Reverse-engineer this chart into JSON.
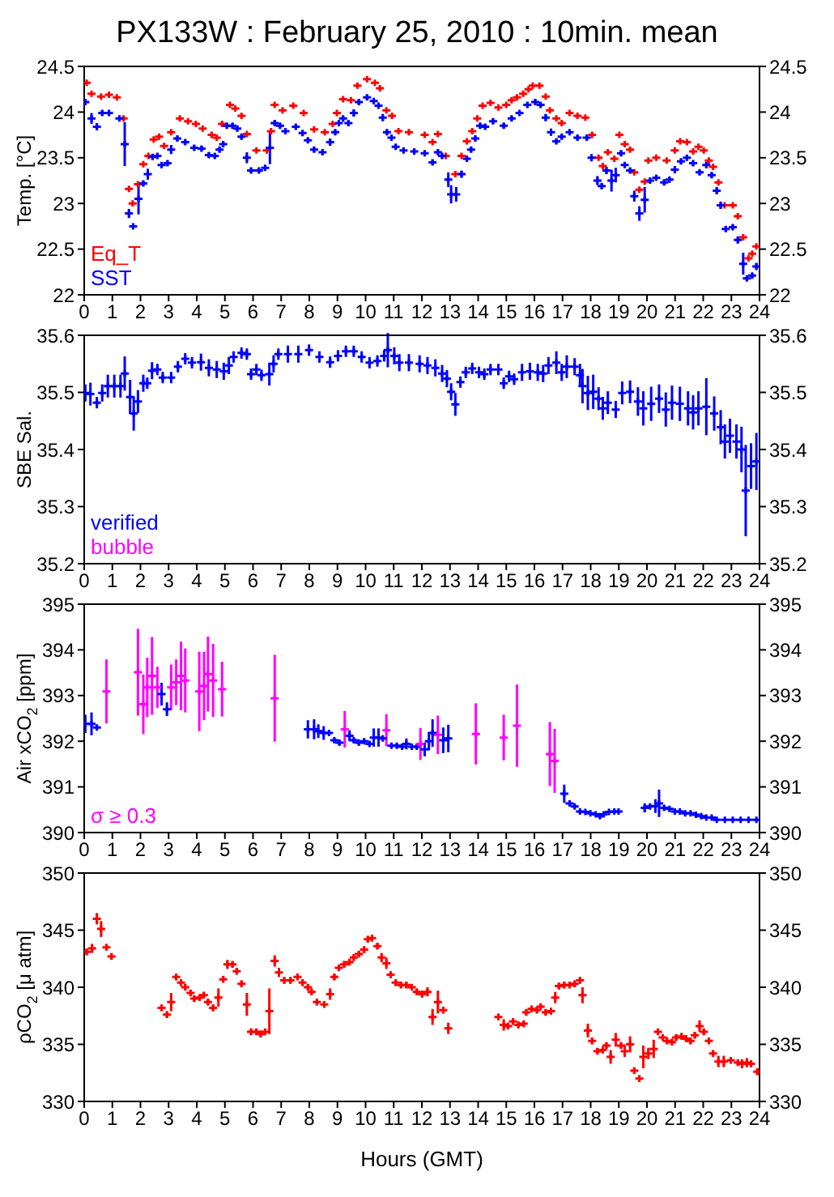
{
  "chart_data": [
    {
      "type": "scatter",
      "title": "PX133W : February 25, 2010 : 10min. mean",
      "ylabel": "Temp. [°C]",
      "marker": "cross",
      "legend": "bottom left",
      "xlim": [
        0,
        24
      ],
      "xticks": [
        0,
        1,
        2,
        3,
        4,
        5,
        6,
        7,
        8,
        9,
        10,
        11,
        12,
        13,
        14,
        15,
        16,
        17,
        18,
        19,
        20,
        21,
        22,
        23,
        24
      ],
      "ylim": [
        22,
        24.5
      ],
      "yticks": [
        22,
        22.5,
        23,
        23.5,
        24,
        24.5
      ],
      "y2lim": [
        22,
        24.5
      ],
      "y2ticks": [
        22,
        22.5,
        23,
        23.5,
        24,
        24.5
      ],
      "series": [
        {
          "name": "Eq_T",
          "color": "#ff0000",
          "x": [
            0.09,
            0.26,
            0.6,
            0.88,
            1.16,
            1.4,
            1.59,
            1.72,
            1.91,
            2.1,
            2.28,
            2.47,
            2.66,
            2.84,
            3.09,
            3.4,
            3.69,
            3.97,
            4.21,
            4.53,
            4.71,
            4.9,
            5.18,
            5.37,
            5.59,
            5.78,
            6.12,
            6.49,
            6.64,
            6.77,
            7.05,
            7.43,
            7.8,
            8.17,
            8.55,
            8.83,
            8.98,
            9.2,
            9.48,
            9.71,
            10.05,
            10.33,
            10.51,
            10.74,
            10.94,
            11.17,
            11.54,
            12.1,
            12.38,
            12.57,
            12.85,
            13.19,
            13.41,
            13.6,
            13.79,
            13.97,
            14.16,
            14.44,
            14.72,
            15.0,
            15.19,
            15.38,
            15.6,
            15.79,
            15.94,
            16.18,
            16.4,
            16.55,
            16.78,
            16.97,
            17.25,
            17.53,
            17.81,
            18.05,
            18.28,
            18.43,
            18.61,
            18.84,
            19.02,
            19.21,
            19.4,
            19.55,
            19.73,
            19.92,
            20.05,
            20.33,
            20.7,
            20.99,
            21.18,
            21.42,
            21.64,
            21.83,
            22.02,
            22.2,
            22.35,
            22.54,
            22.76,
            23.05,
            23.23,
            23.42,
            23.61,
            23.74,
            23.89
          ],
          "values": [
            24.32,
            24.2,
            24.17,
            24.19,
            24.16,
            23.93,
            23.16,
            23.0,
            23.21,
            23.43,
            23.52,
            23.7,
            23.73,
            23.63,
            23.78,
            23.93,
            23.9,
            23.87,
            23.82,
            23.75,
            23.72,
            23.87,
            24.08,
            24.04,
            23.96,
            23.76,
            23.58,
            23.58,
            23.79,
            24.08,
            24.02,
            24.07,
            23.99,
            23.81,
            23.78,
            23.87,
            23.99,
            24.14,
            24.13,
            24.29,
            24.36,
            24.32,
            24.26,
            24.02,
            23.96,
            23.79,
            23.78,
            23.75,
            23.67,
            23.76,
            23.52,
            23.32,
            23.52,
            23.68,
            23.79,
            23.93,
            24.07,
            24.1,
            24.05,
            24.08,
            24.13,
            24.16,
            24.2,
            24.25,
            24.29,
            24.29,
            24.17,
            24.02,
            23.93,
            23.88,
            23.99,
            23.96,
            23.94,
            23.75,
            23.5,
            23.41,
            23.56,
            23.49,
            23.75,
            23.65,
            23.59,
            23.34,
            23.15,
            23.24,
            23.47,
            23.5,
            23.47,
            23.58,
            23.68,
            23.67,
            23.57,
            23.62,
            23.58,
            23.47,
            23.4,
            23.23,
            22.98,
            22.98,
            22.86,
            22.63,
            22.4,
            22.45,
            22.53
          ]
        },
        {
          "name": "SST",
          "color": "#0000ff",
          "x": [
            0.04,
            0.26,
            0.45,
            0.64,
            0.88,
            1.25,
            1.44,
            1.59,
            1.74,
            1.93,
            2.1,
            2.26,
            2.43,
            2.6,
            2.75,
            2.96,
            3.09,
            3.31,
            3.59,
            3.91,
            4.17,
            4.43,
            4.64,
            4.81,
            4.94,
            5.07,
            5.27,
            5.44,
            5.59,
            5.78,
            5.93,
            6.21,
            6.43,
            6.6,
            6.77,
            6.96,
            7.15,
            7.52,
            7.76,
            7.95,
            8.17,
            8.47,
            8.74,
            8.92,
            9.05,
            9.2,
            9.39,
            9.58,
            9.76,
            10.05,
            10.29,
            10.46,
            10.61,
            10.76,
            10.92,
            11.07,
            11.35,
            11.73,
            12.1,
            12.38,
            12.57,
            12.72,
            12.94,
            13.04,
            13.22,
            13.41,
            13.6,
            13.75,
            13.9,
            14.07,
            14.25,
            14.53,
            14.91,
            15.19,
            15.47,
            15.75,
            16.03,
            16.22,
            16.4,
            16.59,
            16.78,
            16.97,
            17.25,
            17.53,
            17.86,
            18.03,
            18.24,
            18.39,
            18.56,
            18.74,
            18.89,
            19.08,
            19.21,
            19.4,
            19.55,
            19.73,
            19.92,
            20.11,
            20.33,
            20.61,
            20.8,
            20.99,
            21.21,
            21.42,
            21.64,
            21.87,
            22.11,
            22.3,
            22.48,
            22.62,
            22.8,
            23.05,
            23.23,
            23.42,
            23.55,
            23.74,
            23.89
          ],
          "values": [
            24.11,
            23.93,
            23.84,
            23.99,
            23.99,
            23.93,
            23.65,
            22.89,
            22.75,
            23.05,
            23.22,
            23.32,
            23.51,
            23.52,
            23.42,
            23.44,
            23.59,
            23.71,
            23.67,
            23.61,
            23.6,
            23.53,
            23.52,
            23.59,
            23.65,
            23.85,
            23.85,
            23.82,
            23.73,
            23.5,
            23.36,
            23.36,
            23.39,
            23.61,
            23.88,
            23.85,
            23.79,
            23.84,
            23.77,
            23.69,
            23.59,
            23.56,
            23.67,
            23.78,
            23.88,
            23.93,
            23.88,
            23.99,
            24.11,
            24.16,
            24.12,
            24.07,
            23.94,
            23.78,
            23.72,
            23.62,
            23.58,
            23.57,
            23.55,
            23.45,
            23.56,
            23.52,
            23.26,
            23.1,
            23.1,
            23.32,
            23.49,
            23.59,
            23.71,
            23.85,
            23.84,
            23.9,
            23.85,
            23.93,
            23.99,
            24.08,
            24.11,
            24.08,
            23.94,
            23.78,
            23.68,
            23.73,
            23.78,
            23.72,
            23.72,
            23.5,
            23.25,
            23.19,
            23.36,
            23.25,
            23.31,
            23.55,
            23.42,
            23.36,
            23.08,
            22.89,
            23.04,
            23.25,
            23.28,
            23.23,
            23.26,
            23.37,
            23.46,
            23.5,
            23.44,
            23.34,
            23.42,
            23.31,
            23.14,
            22.98,
            22.72,
            22.74,
            22.6,
            22.34,
            22.18,
            22.21,
            22.31
          ],
          "errors": [
            0.03,
            0.06,
            0.04,
            0.03,
            0.03,
            0.03,
            0.24,
            0.05,
            0.03,
            0.17,
            0.03,
            0.06,
            0.03,
            0.03,
            0.03,
            0.03,
            0.05,
            0.03,
            0.03,
            0.03,
            0.03,
            0.03,
            0.03,
            0.03,
            0.03,
            0.03,
            0.03,
            0.03,
            0.03,
            0.06,
            0.03,
            0.03,
            0.03,
            0.18,
            0.03,
            0.03,
            0.03,
            0.03,
            0.03,
            0.03,
            0.03,
            0.03,
            0.04,
            0.03,
            0.03,
            0.03,
            0.03,
            0.04,
            0.03,
            0.03,
            0.03,
            0.03,
            0.04,
            0.03,
            0.03,
            0.03,
            0.03,
            0.03,
            0.03,
            0.03,
            0.03,
            0.03,
            0.08,
            0.1,
            0.08,
            0.04,
            0.03,
            0.03,
            0.03,
            0.03,
            0.03,
            0.03,
            0.03,
            0.03,
            0.03,
            0.03,
            0.03,
            0.03,
            0.04,
            0.04,
            0.03,
            0.03,
            0.03,
            0.03,
            0.03,
            0.04,
            0.05,
            0.03,
            0.04,
            0.12,
            0.08,
            0.03,
            0.03,
            0.03,
            0.06,
            0.08,
            0.14,
            0.03,
            0.03,
            0.03,
            0.03,
            0.04,
            0.03,
            0.03,
            0.03,
            0.03,
            0.03,
            0.03,
            0.04,
            0.04,
            0.03,
            0.03,
            0.04,
            0.12,
            0.03,
            0.03,
            0.04
          ]
        }
      ]
    },
    {
      "type": "scatter",
      "ylabel": "SBE Sal.",
      "marker": "cross",
      "legend": "bottom left",
      "xlim": [
        0,
        24
      ],
      "xticks": [
        0,
        1,
        2,
        3,
        4,
        5,
        6,
        7,
        8,
        9,
        10,
        11,
        12,
        13,
        14,
        15,
        16,
        17,
        18,
        19,
        20,
        21,
        22,
        23,
        24
      ],
      "ylim": [
        35.2,
        35.6
      ],
      "yticks": [
        35.2,
        35.3,
        35.4,
        35.5,
        35.6
      ],
      "y2lim": [
        35.2,
        35.6
      ],
      "y2ticks": [
        35.2,
        35.3,
        35.4,
        35.5,
        35.6
      ],
      "series": [
        {
          "name": "verified",
          "color": "#0000ff",
          "x": [
            0.04,
            0.22,
            0.45,
            0.64,
            0.84,
            1.07,
            1.29,
            1.44,
            1.63,
            1.76,
            1.91,
            2.1,
            2.24,
            2.41,
            2.6,
            2.79,
            3.09,
            3.33,
            3.59,
            3.83,
            4.15,
            4.43,
            4.71,
            4.96,
            5.14,
            5.31,
            5.59,
            5.78,
            5.93,
            6.12,
            6.3,
            6.58,
            6.73,
            6.9,
            7.24,
            7.61,
            7.99,
            8.36,
            8.74,
            9.02,
            9.3,
            9.58,
            9.86,
            10.14,
            10.42,
            10.66,
            10.79,
            11.02,
            11.2,
            11.54,
            11.92,
            12.2,
            12.48,
            12.72,
            12.89,
            13.04,
            13.19,
            13.37,
            13.56,
            13.79,
            14.03,
            14.22,
            14.44,
            14.72,
            14.91,
            15.1,
            15.28,
            15.56,
            15.84,
            16.12,
            16.31,
            16.5,
            16.78,
            16.97,
            17.15,
            17.43,
            17.62,
            17.71,
            17.9,
            18.09,
            18.28,
            18.43,
            18.61,
            18.89,
            19.12,
            19.4,
            19.68,
            19.87,
            20.15,
            20.43,
            20.67,
            20.89,
            21.17,
            21.46,
            21.64,
            21.83,
            22.11,
            22.39,
            22.62,
            22.77,
            22.95,
            23.18,
            23.36,
            23.51,
            23.7,
            23.89
          ],
          "values": [
            35.499,
            35.497,
            35.482,
            35.499,
            35.511,
            35.511,
            35.511,
            35.533,
            35.492,
            35.463,
            35.484,
            35.516,
            35.516,
            35.538,
            35.54,
            35.526,
            35.526,
            35.545,
            35.559,
            35.552,
            35.553,
            35.543,
            35.54,
            35.537,
            35.547,
            35.562,
            35.569,
            35.567,
            35.532,
            35.54,
            35.53,
            35.532,
            35.55,
            35.567,
            35.567,
            35.567,
            35.574,
            35.562,
            35.553,
            35.564,
            35.572,
            35.572,
            35.562,
            35.552,
            35.555,
            35.564,
            35.574,
            35.564,
            35.552,
            35.552,
            35.55,
            35.547,
            35.543,
            35.533,
            35.524,
            35.501,
            35.479,
            35.518,
            35.535,
            35.542,
            35.535,
            35.532,
            35.54,
            35.54,
            35.516,
            35.528,
            35.523,
            35.535,
            35.537,
            35.535,
            35.533,
            35.547,
            35.552,
            35.535,
            35.545,
            35.545,
            35.53,
            35.511,
            35.499,
            35.501,
            35.489,
            35.472,
            35.482,
            35.47,
            35.499,
            35.501,
            35.484,
            35.472,
            35.48,
            35.489,
            35.47,
            35.482,
            35.48,
            35.472,
            35.465,
            35.472,
            35.475,
            35.463,
            35.439,
            35.414,
            35.424,
            35.414,
            35.4,
            35.328,
            35.371,
            35.379
          ],
          "errors": [
            0.015,
            0.02,
            0.01,
            0.015,
            0.02,
            0.02,
            0.02,
            0.03,
            0.03,
            0.03,
            0.02,
            0.015,
            0.01,
            0.015,
            0.01,
            0.01,
            0.01,
            0.01,
            0.01,
            0.01,
            0.015,
            0.015,
            0.015,
            0.015,
            0.015,
            0.01,
            0.01,
            0.01,
            0.01,
            0.01,
            0.01,
            0.02,
            0.015,
            0.01,
            0.015,
            0.015,
            0.01,
            0.01,
            0.01,
            0.01,
            0.01,
            0.01,
            0.01,
            0.01,
            0.01,
            0.01,
            0.03,
            0.015,
            0.015,
            0.015,
            0.015,
            0.015,
            0.015,
            0.015,
            0.015,
            0.015,
            0.02,
            0.01,
            0.01,
            0.01,
            0.01,
            0.01,
            0.01,
            0.01,
            0.01,
            0.01,
            0.01,
            0.015,
            0.015,
            0.015,
            0.015,
            0.015,
            0.02,
            0.015,
            0.02,
            0.015,
            0.02,
            0.03,
            0.03,
            0.03,
            0.02,
            0.02,
            0.02,
            0.015,
            0.02,
            0.02,
            0.025,
            0.03,
            0.03,
            0.025,
            0.03,
            0.03,
            0.03,
            0.03,
            0.03,
            0.03,
            0.05,
            0.03,
            0.03,
            0.03,
            0.03,
            0.03,
            0.04,
            0.08,
            0.04,
            0.05
          ]
        },
        {
          "name": "bubble",
          "color": "#ff00ff"
        }
      ]
    },
    {
      "type": "scatter",
      "ylabel": "Air xCO$_{2}$ [ppm]",
      "marker": "cross",
      "legend": "bottom left",
      "xlim": [
        0,
        24
      ],
      "xticks": [
        0,
        1,
        2,
        3,
        4,
        5,
        6,
        7,
        8,
        9,
        10,
        11,
        12,
        13,
        14,
        15,
        16,
        17,
        18,
        19,
        20,
        21,
        22,
        23,
        24
      ],
      "ylim": [
        390,
        395
      ],
      "yticks": [
        390,
        391,
        392,
        393,
        394,
        395
      ],
      "y2lim": [
        390,
        395
      ],
      "y2ticks": [
        390,
        391,
        392,
        393,
        394,
        395
      ],
      "series": [
        {
          "color": "#0000ff",
          "x": [
            0.04,
            0.26,
            0.45,
            2.75,
            2.94,
            7.95,
            8.17,
            8.32,
            8.51,
            8.7,
            8.89,
            9.07,
            9.43,
            9.58,
            9.76,
            9.95,
            10.14,
            10.29,
            10.46,
            10.61,
            10.92,
            11.11,
            11.3,
            11.45,
            11.64,
            11.82,
            12.1,
            12.25,
            12.38,
            12.76,
            12.94,
            17.06,
            17.25,
            17.43,
            17.62,
            17.81,
            17.99,
            18.18,
            18.33,
            18.46,
            18.65,
            18.84,
            18.99,
            19.92,
            20.11,
            20.3,
            20.43,
            20.61,
            20.8,
            20.99,
            21.17,
            21.36,
            21.55,
            21.74,
            21.93,
            22.11,
            22.3,
            22.48,
            22.77,
            23.05,
            23.33,
            23.61,
            23.89
          ],
          "values": [
            392.38,
            392.38,
            392.3,
            393.03,
            392.7,
            392.26,
            392.26,
            392.22,
            392.18,
            392.18,
            392.02,
            391.97,
            392.12,
            392.02,
            391.97,
            392.0,
            391.94,
            392.08,
            392.08,
            392.06,
            391.9,
            391.9,
            391.88,
            391.94,
            391.88,
            391.88,
            391.82,
            392.0,
            392.18,
            392.02,
            392.06,
            390.85,
            390.64,
            390.57,
            390.46,
            390.45,
            390.42,
            390.4,
            390.36,
            390.4,
            390.45,
            390.46,
            390.46,
            390.54,
            390.57,
            390.58,
            390.64,
            390.54,
            390.52,
            390.46,
            390.46,
            390.42,
            390.42,
            390.39,
            390.36,
            390.33,
            390.33,
            390.28,
            390.28,
            390.28,
            390.28,
            390.28,
            390.28
          ],
          "errors": [
            0.2,
            0.25,
            0.05,
            0.25,
            0.15,
            0.2,
            0.22,
            0.15,
            0.15,
            0.05,
            0.05,
            0.05,
            0.12,
            0.05,
            0.05,
            0.05,
            0.05,
            0.2,
            0.2,
            0.05,
            0.05,
            0.05,
            0.05,
            0.12,
            0.05,
            0.05,
            0.15,
            0.2,
            0.3,
            0.28,
            0.3,
            0.2,
            0.05,
            0.05,
            0.03,
            0.03,
            0.03,
            0.03,
            0.05,
            0.03,
            0.03,
            0.03,
            0.03,
            0.1,
            0.05,
            0.15,
            0.3,
            0.05,
            0.03,
            0.03,
            0.03,
            0.03,
            0.03,
            0.03,
            0.03,
            0.03,
            0.03,
            0.03,
            0.03,
            0.03,
            0.03,
            0.03,
            0.03
          ]
        },
        {
          "name": "σ ≥ 0.3",
          "color": "#ff00ff",
          "x": [
            0.79,
            1.91,
            2.1,
            2.24,
            2.41,
            2.6,
            3.09,
            3.27,
            3.44,
            3.59,
            4.09,
            4.26,
            4.4,
            4.58,
            4.9,
            6.77,
            9.26,
            10.74,
            11.95,
            12.57,
            13.92,
            14.91,
            15.38,
            16.55,
            16.72
          ],
          "values": [
            393.09,
            393.51,
            392.81,
            393.18,
            393.43,
            393.18,
            393.18,
            393.29,
            393.43,
            393.33,
            393.09,
            393.21,
            393.47,
            393.33,
            393.14,
            392.94,
            392.26,
            392.24,
            391.94,
            392.14,
            392.16,
            392.08,
            392.34,
            391.72,
            391.57
          ],
          "errors": [
            0.7,
            0.95,
            0.65,
            0.65,
            0.85,
            0.45,
            0.5,
            0.5,
            0.75,
            0.7,
            0.87,
            0.75,
            0.82,
            0.8,
            0.6,
            0.95,
            0.4,
            0.35,
            0.35,
            0.42,
            0.67,
            0.5,
            0.9,
            0.7,
            0.7
          ]
        }
      ]
    },
    {
      "type": "scatter",
      "ylabel": "ρCO$_{2}$ [μ atm]",
      "xlabel": "Hours (GMT)",
      "marker": "cross",
      "xlim": [
        0,
        24
      ],
      "xticks": [
        0,
        1,
        2,
        3,
        4,
        5,
        6,
        7,
        8,
        9,
        10,
        11,
        12,
        13,
        14,
        15,
        16,
        17,
        18,
        19,
        20,
        21,
        22,
        23,
        24
      ],
      "ylim": [
        330,
        350
      ],
      "yticks": [
        330,
        335,
        340,
        345,
        350
      ],
      "y2lim": [
        330,
        350
      ],
      "y2ticks": [
        330,
        335,
        340,
        345,
        350
      ],
      "series": [
        {
          "color": "#ff0000",
          "x": [
            0.09,
            0.28,
            0.45,
            0.6,
            0.79,
            0.97,
            2.75,
            2.94,
            3.09,
            3.27,
            3.44,
            3.59,
            3.78,
            3.91,
            4.1,
            4.25,
            4.4,
            4.58,
            4.77,
            4.94,
            5.09,
            5.27,
            5.42,
            5.59,
            5.78,
            5.93,
            6.12,
            6.27,
            6.43,
            6.58,
            6.77,
            6.92,
            7.11,
            7.33,
            7.58,
            7.76,
            7.95,
            8.08,
            8.27,
            8.53,
            8.74,
            8.89,
            9.05,
            9.24,
            9.43,
            9.58,
            9.76,
            9.95,
            10.08,
            10.23,
            10.42,
            10.57,
            10.74,
            10.89,
            11.07,
            11.26,
            11.45,
            11.64,
            11.82,
            12.01,
            12.2,
            12.38,
            12.57,
            12.76,
            12.94,
            14.72,
            14.91,
            15.06,
            15.24,
            15.43,
            15.62,
            15.71,
            15.9,
            16.09,
            16.22,
            16.4,
            16.59,
            16.74,
            16.87,
            17.06,
            17.25,
            17.43,
            17.62,
            17.71,
            17.9,
            18.05,
            18.24,
            18.43,
            18.56,
            18.71,
            18.89,
            19.08,
            19.21,
            19.4,
            19.55,
            19.73,
            19.87,
            20.05,
            20.24,
            20.39,
            20.56,
            20.71,
            20.89,
            21.04,
            21.23,
            21.39,
            21.55,
            21.7,
            21.87,
            22.02,
            22.2,
            22.35,
            22.54,
            22.73,
            22.98,
            23.23,
            23.38,
            23.55,
            23.7,
            23.92
          ],
          "values": [
            343.1,
            343.4,
            346.0,
            345.1,
            343.5,
            342.7,
            338.2,
            337.6,
            338.7,
            340.9,
            340.4,
            340.0,
            339.5,
            339.0,
            339.1,
            339.3,
            338.7,
            338.2,
            339.1,
            340.7,
            342.0,
            342.0,
            341.4,
            340.3,
            338.5,
            336.1,
            336.1,
            335.9,
            336.1,
            337.9,
            342.3,
            341.3,
            340.6,
            340.6,
            340.9,
            340.4,
            340.0,
            339.6,
            338.7,
            338.5,
            339.4,
            340.9,
            341.7,
            342.0,
            342.2,
            342.6,
            342.9,
            343.3,
            344.2,
            344.3,
            343.6,
            342.6,
            342.1,
            341.1,
            340.4,
            340.2,
            340.2,
            340.0,
            339.6,
            339.4,
            339.6,
            337.4,
            338.7,
            338.0,
            336.4,
            337.4,
            336.7,
            336.6,
            337.0,
            336.7,
            336.8,
            337.8,
            338.1,
            338.0,
            338.3,
            337.8,
            337.9,
            339.1,
            340.1,
            340.2,
            340.2,
            340.3,
            340.6,
            339.3,
            336.2,
            335.3,
            334.4,
            334.5,
            334.9,
            333.9,
            335.4,
            334.9,
            334.4,
            335.0,
            332.7,
            332.0,
            333.9,
            334.2,
            334.6,
            336.1,
            335.6,
            335.3,
            335.2,
            335.6,
            335.7,
            335.5,
            335.3,
            335.8,
            336.6,
            336.1,
            335.3,
            334.2,
            333.5,
            333.5,
            333.6,
            333.4,
            333.3,
            333.4,
            333.3,
            332.6
          ],
          "errors": [
            0.3,
            0.4,
            0.5,
            0.7,
            0.3,
            0.3,
            0.3,
            0.3,
            0.8,
            0.3,
            0.3,
            0.3,
            0.3,
            0.3,
            0.3,
            0.3,
            0.3,
            0.3,
            0.8,
            0.3,
            0.4,
            0.3,
            0.3,
            0.3,
            1.0,
            0.3,
            0.3,
            0.3,
            0.3,
            2.0,
            0.5,
            0.4,
            0.3,
            0.3,
            0.3,
            0.3,
            0.3,
            0.3,
            0.3,
            0.3,
            0.5,
            0.3,
            0.3,
            0.3,
            0.3,
            0.3,
            0.3,
            0.3,
            0.3,
            0.3,
            0.3,
            0.4,
            0.5,
            0.3,
            0.3,
            0.3,
            0.3,
            0.3,
            0.3,
            0.3,
            0.4,
            0.7,
            1.0,
            0.3,
            0.5,
            0.3,
            0.5,
            0.3,
            0.3,
            0.3,
            0.3,
            0.3,
            0.3,
            0.3,
            0.3,
            0.3,
            0.3,
            0.5,
            0.3,
            0.3,
            0.3,
            0.3,
            0.3,
            0.7,
            0.6,
            0.3,
            0.3,
            0.3,
            0.3,
            0.6,
            0.6,
            0.3,
            0.5,
            0.7,
            0.3,
            0.3,
            1.0,
            0.5,
            0.8,
            0.3,
            0.3,
            0.3,
            0.3,
            0.3,
            0.3,
            0.3,
            0.3,
            0.3,
            0.5,
            0.3,
            0.3,
            0.3,
            0.5,
            0.5,
            0.3,
            0.3,
            0.4,
            0.4,
            0.3,
            0.3
          ]
        }
      ]
    }
  ]
}
